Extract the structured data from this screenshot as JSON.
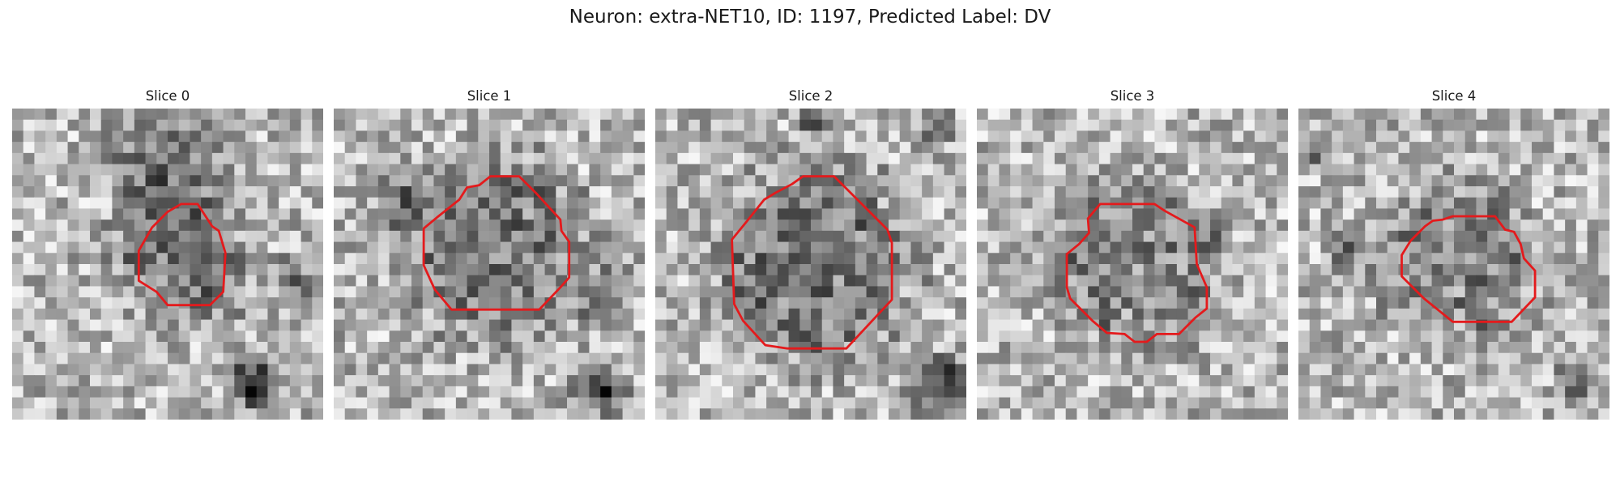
{
  "figure": {
    "title": "Neuron: extra-NET10, ID: 1197, Predicted Label: DV"
  },
  "panels": [
    {
      "title": "Slice 0",
      "seed": 11,
      "cell_center": [
        0.54,
        0.48
      ],
      "cell_radius": 0.2,
      "cell_darkness": 0.25,
      "dark_patches": [
        [
          0.5,
          0.15,
          0.25,
          0.35
        ],
        [
          0.78,
          0.88,
          0.12,
          0.65
        ],
        [
          0.9,
          0.55,
          0.1,
          0.35
        ]
      ],
      "outline": [
        [
          15.2,
          8.6
        ],
        [
          16.7,
          8.6
        ],
        [
          18.0,
          10.6
        ],
        [
          18.6,
          11.0
        ],
        [
          19.2,
          13.0
        ],
        [
          19.0,
          16.5
        ],
        [
          17.8,
          17.7
        ],
        [
          14.0,
          17.7
        ],
        [
          13.0,
          16.5
        ],
        [
          11.4,
          15.5
        ],
        [
          11.4,
          12.8
        ],
        [
          12.6,
          10.7
        ],
        [
          14.0,
          9.3
        ]
      ]
    },
    {
      "title": "Slice 1",
      "seed": 23,
      "cell_center": [
        0.53,
        0.45
      ],
      "cell_radius": 0.26,
      "cell_darkness": 0.2,
      "dark_patches": [
        [
          0.22,
          0.3,
          0.12,
          0.3
        ],
        [
          0.85,
          0.9,
          0.12,
          0.6
        ],
        [
          0.88,
          0.6,
          0.12,
          0.35
        ]
      ],
      "outline": [
        [
          11.3,
          8.2
        ],
        [
          12.0,
          7.1
        ],
        [
          13.1,
          6.9
        ],
        [
          14.1,
          6.1
        ],
        [
          16.7,
          6.1
        ],
        [
          18.2,
          7.6
        ],
        [
          20.4,
          10.0
        ],
        [
          20.5,
          11.0
        ],
        [
          21.2,
          12.0
        ],
        [
          21.2,
          15.2
        ],
        [
          20.4,
          16.1
        ],
        [
          18.5,
          18.1
        ],
        [
          10.6,
          18.1
        ],
        [
          9.1,
          16.3
        ],
        [
          8.1,
          14.1
        ],
        [
          8.1,
          10.8
        ],
        [
          9.3,
          9.8
        ],
        [
          11.3,
          8.2
        ]
      ]
    },
    {
      "title": "Slice 2",
      "seed": 37,
      "cell_center": [
        0.5,
        0.5
      ],
      "cell_radius": 0.29,
      "cell_darkness": 0.22,
      "dark_patches": [
        [
          0.92,
          0.9,
          0.14,
          0.65
        ],
        [
          0.52,
          0.05,
          0.08,
          0.4
        ],
        [
          0.9,
          0.05,
          0.1,
          0.3
        ]
      ],
      "outline": [
        [
          10.8,
          7.6
        ],
        [
          12.3,
          6.8
        ],
        [
          13.3,
          6.1
        ],
        [
          16.1,
          6.1
        ],
        [
          18.8,
          8.8
        ],
        [
          20.9,
          10.9
        ],
        [
          21.3,
          12.1
        ],
        [
          21.3,
          17.2
        ],
        [
          17.2,
          21.6
        ],
        [
          11.9,
          21.6
        ],
        [
          9.9,
          21.3
        ],
        [
          7.9,
          19.1
        ],
        [
          7.1,
          17.6
        ],
        [
          6.9,
          11.8
        ],
        [
          8.2,
          10.2
        ],
        [
          9.8,
          8.2
        ]
      ]
    },
    {
      "title": "Slice 3",
      "seed": 41,
      "cell_center": [
        0.5,
        0.5
      ],
      "cell_radius": 0.25,
      "cell_darkness": 0.15,
      "dark_patches": [
        [
          0.75,
          0.4,
          0.08,
          0.3
        ],
        [
          0.3,
          0.45,
          0.05,
          0.25
        ]
      ],
      "outline": [
        [
          10.0,
          9.9
        ],
        [
          11.1,
          8.6
        ],
        [
          16.0,
          8.6
        ],
        [
          16.9,
          9.2
        ],
        [
          19.6,
          10.7
        ],
        [
          19.8,
          14.0
        ],
        [
          20.7,
          16.1
        ],
        [
          20.7,
          18.0
        ],
        [
          19.7,
          18.8
        ],
        [
          18.2,
          20.3
        ],
        [
          16.2,
          20.3
        ],
        [
          15.3,
          21.0
        ],
        [
          14.2,
          21.0
        ],
        [
          13.3,
          20.3
        ],
        [
          11.7,
          20.2
        ],
        [
          10.4,
          19.1
        ],
        [
          8.4,
          17.1
        ],
        [
          8.1,
          16.1
        ],
        [
          8.1,
          13.1
        ],
        [
          9.2,
          12.2
        ],
        [
          10.1,
          11.2
        ]
      ]
    },
    {
      "title": "Slice 4",
      "seed": 53,
      "cell_center": [
        0.52,
        0.5
      ],
      "cell_radius": 0.23,
      "cell_darkness": 0.15,
      "dark_patches": [
        [
          0.06,
          0.15,
          0.08,
          0.3
        ],
        [
          0.9,
          0.88,
          0.1,
          0.4
        ],
        [
          0.15,
          0.45,
          0.08,
          0.3
        ]
      ],
      "outline": [
        [
          12.1,
          10.1
        ],
        [
          13.0,
          10.0
        ],
        [
          13.9,
          9.7
        ],
        [
          17.7,
          9.7
        ],
        [
          18.6,
          10.9
        ],
        [
          19.4,
          11.1
        ],
        [
          20.0,
          12.2
        ],
        [
          20.3,
          13.5
        ],
        [
          21.3,
          14.6
        ],
        [
          21.3,
          17.0
        ],
        [
          19.2,
          19.2
        ],
        [
          13.9,
          19.2
        ],
        [
          11.3,
          17.1
        ],
        [
          9.3,
          15.1
        ],
        [
          9.3,
          13.2
        ],
        [
          10.1,
          11.9
        ],
        [
          11.4,
          10.6
        ]
      ]
    }
  ]
}
